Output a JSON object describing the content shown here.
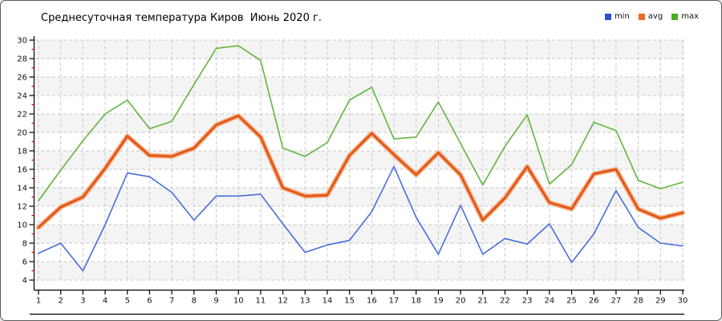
{
  "title": "Среднесуточная температура Киров  Июнь 2020 г.",
  "legend": [
    {
      "label": "min",
      "color": "#2f4fd8"
    },
    {
      "label": "avg",
      "color": "#ed6a24"
    },
    {
      "label": "max",
      "color": "#4aae22"
    }
  ],
  "chart_data": {
    "type": "line",
    "title": "Среднесуточная температура Киров  Июнь 2020 г.",
    "xlabel": "",
    "ylabel": "",
    "x": [
      1,
      2,
      3,
      4,
      5,
      6,
      7,
      8,
      9,
      10,
      11,
      12,
      13,
      14,
      15,
      16,
      17,
      18,
      19,
      20,
      21,
      22,
      23,
      24,
      25,
      26,
      27,
      28,
      29,
      30
    ],
    "series": [
      {
        "name": "min",
        "color": "#4a6edb",
        "width": 1.6,
        "values": [
          6.9,
          8.0,
          5.0,
          10.0,
          15.6,
          15.2,
          13.5,
          10.5,
          13.1,
          13.1,
          13.3,
          10.1,
          7.0,
          7.8,
          8.3,
          11.4,
          16.3,
          10.8,
          6.8,
          12.1,
          6.8,
          8.5,
          7.9,
          10.1,
          5.9,
          9.0,
          13.7,
          9.7,
          8.0,
          7.7
        ]
      },
      {
        "name": "avg",
        "color": "#e2591b",
        "halo": "#f6b289",
        "width": 3,
        "values": [
          9.7,
          11.9,
          13.0,
          16.1,
          19.6,
          17.5,
          17.4,
          18.3,
          20.8,
          21.8,
          19.5,
          14.0,
          13.1,
          13.2,
          17.5,
          19.9,
          17.6,
          15.4,
          17.8,
          15.4,
          10.5,
          12.9,
          16.3,
          12.4,
          11.7,
          15.5,
          16.0,
          11.7,
          10.7,
          11.3
        ]
      },
      {
        "name": "max",
        "color": "#62b53e",
        "width": 1.6,
        "values": [
          12.6,
          15.9,
          19.1,
          22.0,
          23.5,
          20.4,
          21.2,
          25.2,
          29.1,
          29.4,
          27.8,
          18.3,
          17.4,
          18.9,
          23.5,
          24.9,
          19.3,
          19.5,
          23.3,
          18.8,
          14.3,
          18.5,
          21.9,
          14.4,
          16.5,
          21.1,
          20.2,
          14.8,
          13.9,
          14.6
        ]
      }
    ],
    "ylim": [
      4,
      30
    ],
    "ytick_step": 2,
    "xlim": [
      1,
      30
    ],
    "grid": "dashed",
    "band_fill": "#f4f4f4",
    "grid_color": "#c9c9c9",
    "axis_color": "#000000",
    "minor_tick_color": "#dd0000",
    "tick_label_color": "#111111",
    "legend_position": "top-right"
  }
}
